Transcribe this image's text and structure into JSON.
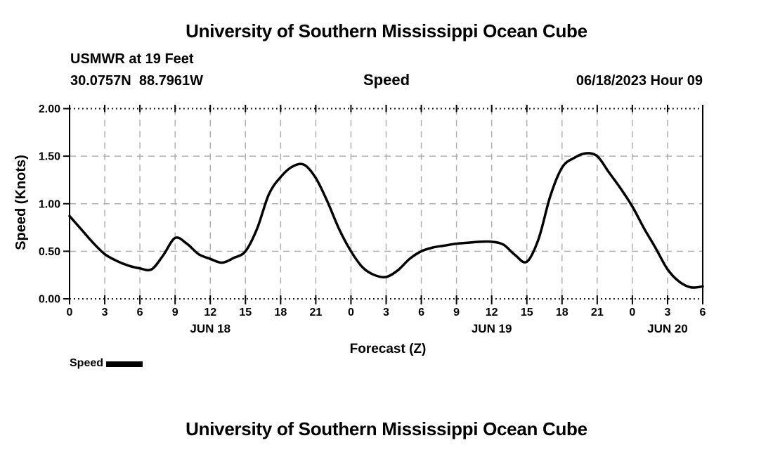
{
  "page": {
    "top_title": "University of Southern Mississippi Ocean Cube",
    "bottom_title": "University of Southern Mississippi Ocean Cube"
  },
  "header": {
    "station": "USMWR at 19 Feet",
    "coordinates": "30.0757N  88.7961W",
    "plot_title": "Speed",
    "run_time": "06/18/2023 Hour 09"
  },
  "chart_data": {
    "type": "line",
    "title": "Speed",
    "xlabel": "Forecast (Z)",
    "ylabel": "Speed (Knots)",
    "ylim": [
      0.0,
      2.0
    ],
    "xlim_hours": [
      0,
      54
    ],
    "grid": true,
    "legend_position": "bottom-left",
    "colors": {
      "line": "#000000",
      "grid": "#b0b0b0",
      "axis": "#000000",
      "background": "#ffffff"
    },
    "y_ticks": [
      {
        "label": "0.00",
        "value": 0.0
      },
      {
        "label": "0.50",
        "value": 0.5
      },
      {
        "label": "1.00",
        "value": 1.0
      },
      {
        "label": "1.50",
        "value": 1.5
      },
      {
        "label": "2.00",
        "value": 2.0
      }
    ],
    "x_ticks": [
      {
        "label": "0",
        "hour": 0
      },
      {
        "label": "3",
        "hour": 3
      },
      {
        "label": "6",
        "hour": 6
      },
      {
        "label": "9",
        "hour": 9
      },
      {
        "label": "12",
        "hour": 12
      },
      {
        "label": "15",
        "hour": 15
      },
      {
        "label": "18",
        "hour": 18
      },
      {
        "label": "21",
        "hour": 21
      },
      {
        "label": "0",
        "hour": 24
      },
      {
        "label": "3",
        "hour": 27
      },
      {
        "label": "6",
        "hour": 30
      },
      {
        "label": "9",
        "hour": 33
      },
      {
        "label": "12",
        "hour": 36
      },
      {
        "label": "15",
        "hour": 39
      },
      {
        "label": "18",
        "hour": 42
      },
      {
        "label": "21",
        "hour": 45
      },
      {
        "label": "0",
        "hour": 48
      },
      {
        "label": "3",
        "hour": 51
      },
      {
        "label": "6",
        "hour": 54
      }
    ],
    "date_labels": [
      {
        "label": "JUN 18",
        "hour": 12
      },
      {
        "label": "JUN 19",
        "hour": 36
      },
      {
        "label": "JUN 20",
        "hour": 51
      }
    ],
    "legend": {
      "label": "Speed"
    },
    "series": [
      {
        "name": "Speed",
        "units": "Knots",
        "x": [
          0,
          1,
          2,
          3,
          4,
          5,
          6,
          7,
          8,
          9,
          10,
          11,
          12,
          13,
          14,
          15,
          16,
          17,
          18,
          19,
          20,
          21,
          22,
          23,
          24,
          25,
          26,
          27,
          28,
          29,
          30,
          31,
          32,
          33,
          34,
          35,
          36,
          37,
          38,
          39,
          40,
          41,
          42,
          43,
          44,
          45,
          46,
          47,
          48,
          49,
          50,
          51,
          52,
          53,
          54
        ],
        "values": [
          0.87,
          0.73,
          0.59,
          0.47,
          0.4,
          0.35,
          0.32,
          0.31,
          0.46,
          0.64,
          0.58,
          0.47,
          0.42,
          0.38,
          0.43,
          0.5,
          0.74,
          1.1,
          1.28,
          1.39,
          1.41,
          1.27,
          1.02,
          0.73,
          0.5,
          0.33,
          0.25,
          0.23,
          0.3,
          0.42,
          0.5,
          0.54,
          0.56,
          0.58,
          0.59,
          0.6,
          0.6,
          0.57,
          0.46,
          0.39,
          0.63,
          1.08,
          1.38,
          1.48,
          1.53,
          1.5,
          1.33,
          1.16,
          0.97,
          0.74,
          0.53,
          0.31,
          0.18,
          0.12,
          0.13
        ]
      }
    ]
  }
}
